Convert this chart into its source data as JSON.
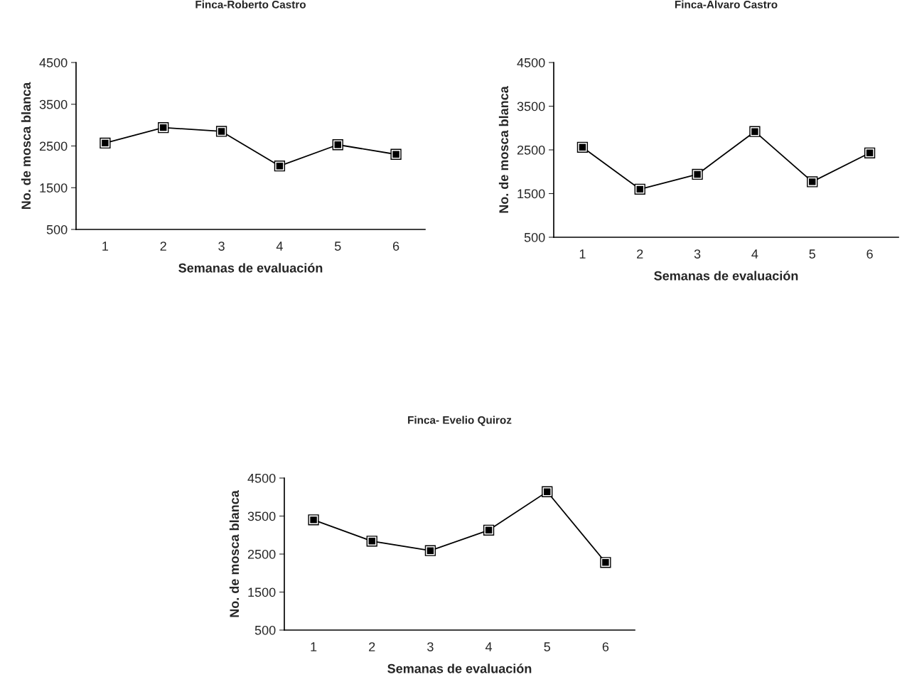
{
  "chart_data": [
    {
      "type": "line",
      "title": "Finca-Roberto Castro",
      "xlabel": "Semanas de evaluación",
      "ylabel": "No. de mosca blanca",
      "categories": [
        "1",
        "2",
        "3",
        "4",
        "5",
        "6"
      ],
      "series": [
        {
          "color": "#000000",
          "values": [
            2570,
            2940,
            2850,
            2020,
            2530,
            2300
          ]
        }
      ],
      "ylim": [
        500,
        4500
      ],
      "yticks": [
        500,
        1500,
        2500,
        3500,
        4500
      ],
      "marker": "square",
      "line_style": "solid",
      "grid": false,
      "legend": false
    },
    {
      "type": "line",
      "title": "Finca-Alvaro Castro",
      "xlabel": "Semanas de evaluación",
      "ylabel": "No. de mosca blanca",
      "categories": [
        "1",
        "2",
        "3",
        "4",
        "5",
        "6"
      ],
      "series": [
        {
          "color": "#000000",
          "values": [
            2560,
            1600,
            1940,
            2920,
            1770,
            2430
          ]
        }
      ],
      "ylim": [
        500,
        4500
      ],
      "yticks": [
        500,
        1500,
        2500,
        3500,
        4500
      ],
      "marker": "square",
      "line_style": "solid",
      "grid": false,
      "legend": false
    },
    {
      "type": "line",
      "title": "Finca- Evelio Quiroz",
      "xlabel": "Semanas de evaluación",
      "ylabel": "No. de mosca blanca",
      "categories": [
        "1",
        "2",
        "3",
        "4",
        "5",
        "6"
      ],
      "series": [
        {
          "color": "#000000",
          "values": [
            3400,
            2840,
            2590,
            3130,
            4140,
            2280
          ]
        }
      ],
      "ylim": [
        500,
        4500
      ],
      "yticks": [
        500,
        1500,
        2500,
        3500,
        4500
      ],
      "marker": "square",
      "line_style": "solid",
      "grid": false,
      "legend": false
    }
  ]
}
